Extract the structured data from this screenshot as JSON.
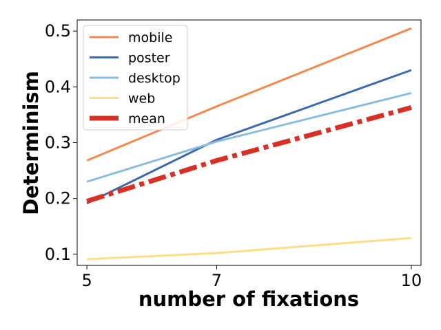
{
  "chart_data": {
    "type": "line",
    "title": "",
    "xlabel": "number of fixations",
    "ylabel": "Determinism",
    "x": [
      5,
      7,
      10
    ],
    "xticks": [
      "5",
      "7",
      "10"
    ],
    "yticks": [
      "0.1",
      "0.2",
      "0.3",
      "0.4",
      "0.5"
    ],
    "xlim": [
      4.85,
      10.15
    ],
    "ylim": [
      0.08,
      0.52
    ],
    "grid": false,
    "legend_position": "top-left",
    "series": [
      {
        "name": "mobile",
        "color": "#f4894f",
        "style": "solid",
        "values": [
          0.268,
          0.365,
          0.505
        ]
      },
      {
        "name": "poster",
        "color": "#3c6aab",
        "style": "solid",
        "values": [
          0.191,
          0.305,
          0.43
        ]
      },
      {
        "name": "desktop",
        "color": "#8cbcdc",
        "style": "solid",
        "values": [
          0.23,
          0.302,
          0.389
        ]
      },
      {
        "name": "web",
        "color": "#fbdf88",
        "style": "solid",
        "values": [
          0.091,
          0.102,
          0.129
        ]
      },
      {
        "name": "mean",
        "color": "#d73027",
        "style": "dash-dot",
        "values": [
          0.195,
          0.268,
          0.363
        ]
      }
    ]
  }
}
